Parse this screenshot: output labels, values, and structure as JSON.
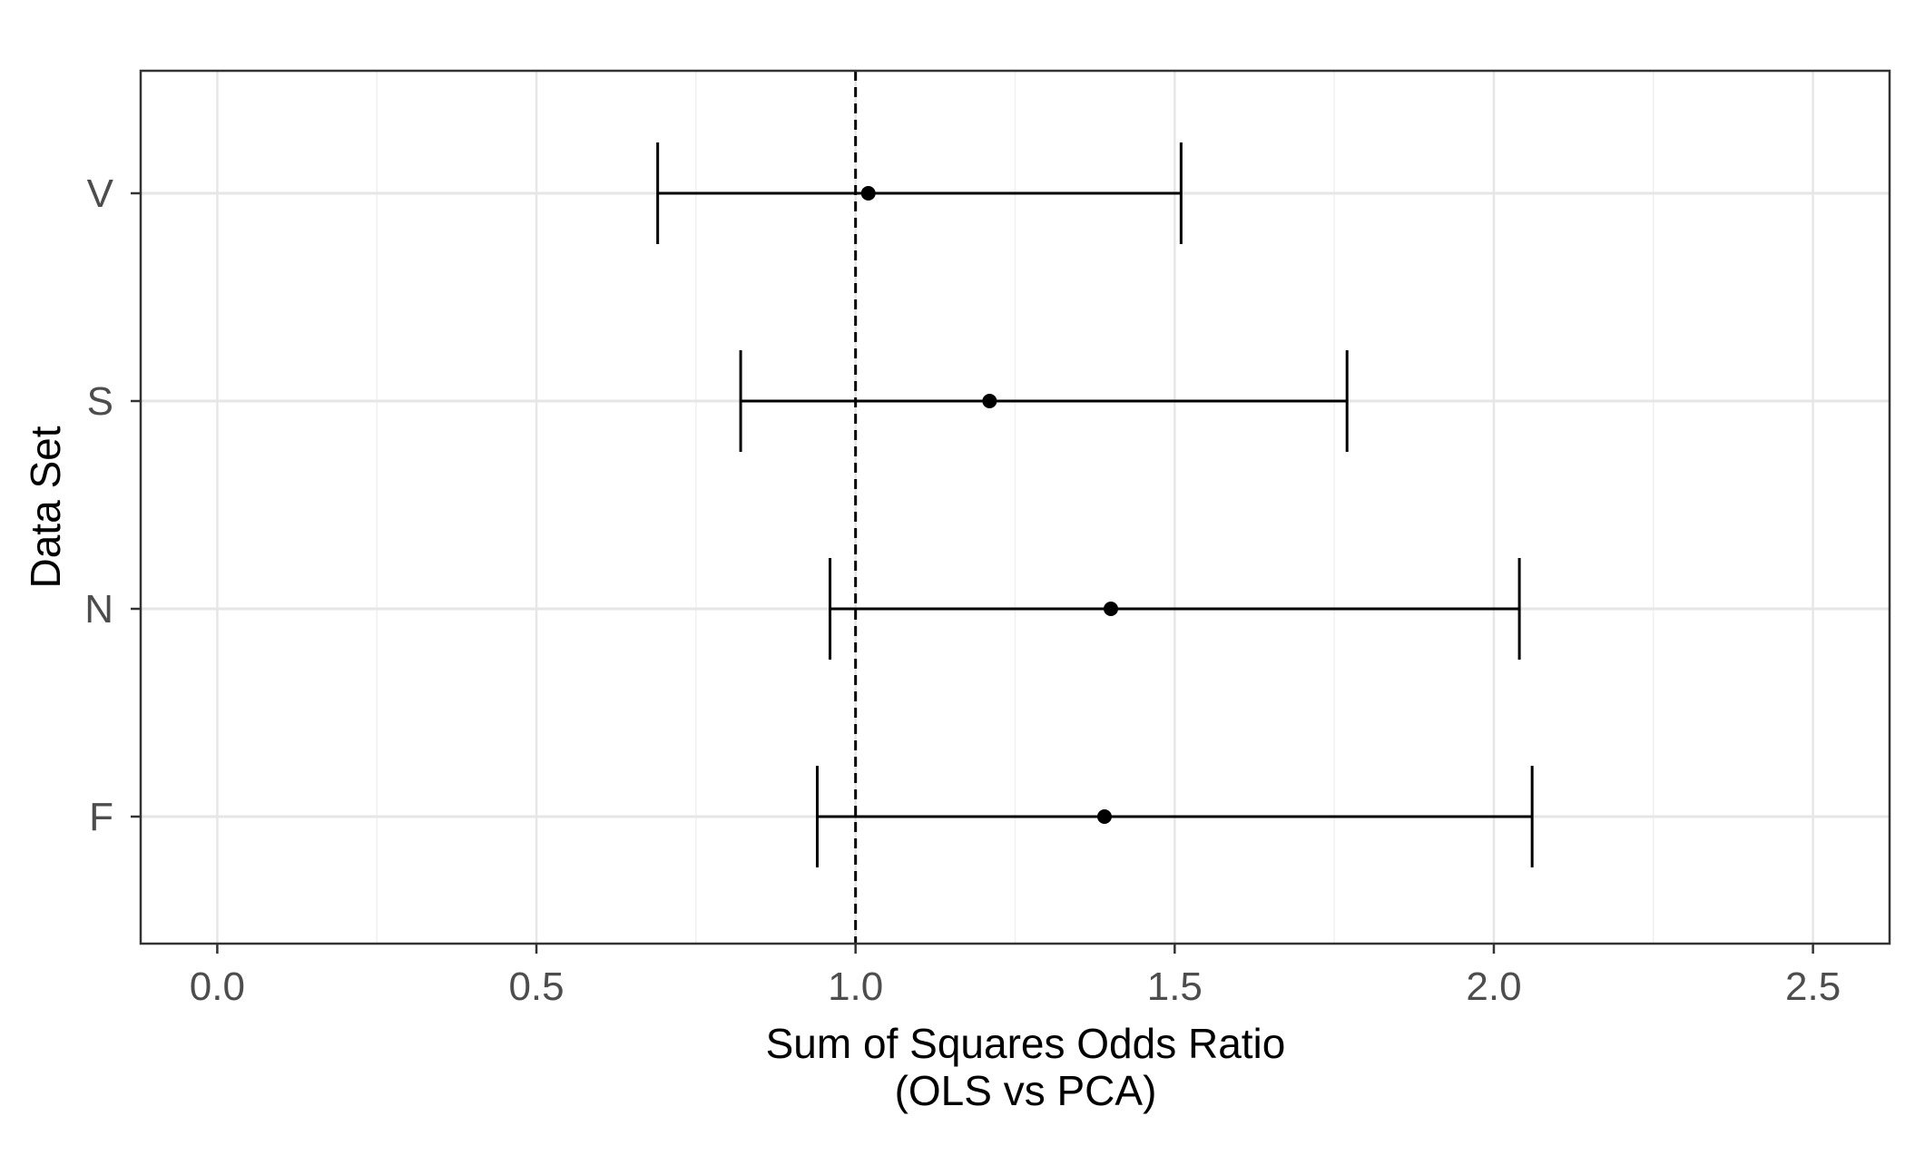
{
  "chart_data": {
    "type": "forest",
    "xlabel_lines": [
      "Sum of Squares Odds Ratio",
      "(OLS vs PCA)"
    ],
    "ylabel": "Data Set",
    "xlim": [
      -0.12,
      2.62
    ],
    "xticks": [
      0.0,
      0.5,
      1.0,
      1.5,
      2.0,
      2.5
    ],
    "xtick_labels": [
      "0.0",
      "0.5",
      "1.0",
      "1.5",
      "2.0",
      "2.5"
    ],
    "categories": [
      "V",
      "S",
      "N",
      "F"
    ],
    "points": [
      {
        "label": "V",
        "estimate": 1.02,
        "lower": 0.69,
        "upper": 1.51
      },
      {
        "label": "S",
        "estimate": 1.21,
        "lower": 0.82,
        "upper": 1.77
      },
      {
        "label": "N",
        "estimate": 1.4,
        "lower": 0.96,
        "upper": 2.04
      },
      {
        "label": "F",
        "estimate": 1.39,
        "lower": 0.94,
        "upper": 2.06
      }
    ],
    "reference_line": 1.0,
    "reference_line_style": "dashed",
    "grid": true,
    "legend": "none"
  }
}
